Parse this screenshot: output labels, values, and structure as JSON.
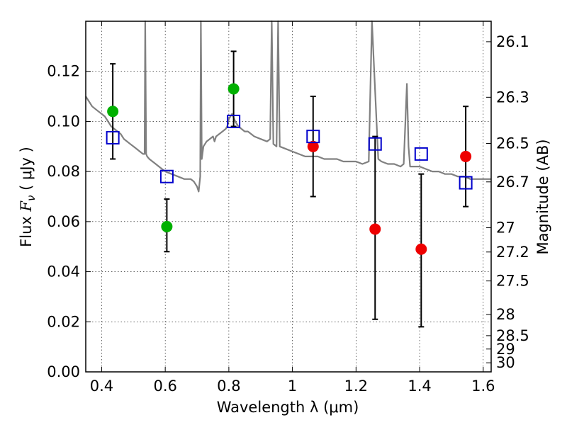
{
  "chart_data": {
    "type": "scatter",
    "xlabel": "Wavelength  λ (μm)",
    "ylabel_text": "Flux  ",
    "ylabel_math": "F",
    "ylabel_sub": "ν",
    "ylabel_unit": " ( μJy )",
    "y2label": "Magnitude (AB)",
    "xlim": [
      0.35,
      1.625
    ],
    "ylim": [
      0,
      0.14
    ],
    "grid": true,
    "x_ticks": [
      0.4,
      0.6,
      0.8,
      1.0,
      1.2,
      1.4,
      1.6
    ],
    "x_tick_labels": [
      "0.4",
      "0.6",
      "0.8",
      "1",
      "1.2",
      "1.4",
      "1.6"
    ],
    "y_ticks": [
      0,
      0.02,
      0.04,
      0.06,
      0.08,
      0.1,
      0.12
    ],
    "y_tick_labels": [
      "0.00",
      "0.02",
      "0.04",
      "0.06",
      "0.08",
      "0.10",
      "0.12"
    ],
    "y2_ticks": [
      26.1,
      26.3,
      26.5,
      26.7,
      27,
      27.2,
      27.5,
      28,
      28.5,
      29,
      30
    ],
    "y2_tick_labels": [
      "26.1",
      "26.3",
      "26.5",
      "26.7",
      "27",
      "27.2",
      "27.5",
      "28",
      "28.5",
      "29",
      "30"
    ],
    "colors": {
      "model_spectrum": "#808080",
      "detections": "#00b000",
      "upper_limits": "#ee0000",
      "model_photometry": "#0000cc",
      "errorbars": "#000000"
    },
    "model_spectrum": {
      "x": [
        0.35,
        0.36,
        0.37,
        0.38,
        0.39,
        0.4,
        0.41,
        0.42,
        0.43,
        0.44,
        0.45,
        0.46,
        0.47,
        0.48,
        0.49,
        0.5,
        0.51,
        0.52,
        0.53,
        0.535,
        0.537,
        0.54,
        0.543,
        0.55,
        0.56,
        0.57,
        0.58,
        0.59,
        0.6,
        0.62,
        0.64,
        0.66,
        0.68,
        0.69,
        0.7,
        0.705,
        0.71,
        0.712,
        0.715,
        0.72,
        0.73,
        0.74,
        0.75,
        0.755,
        0.76,
        0.77,
        0.78,
        0.79,
        0.795,
        0.8,
        0.81,
        0.82,
        0.825,
        0.83,
        0.84,
        0.85,
        0.86,
        0.87,
        0.88,
        0.9,
        0.92,
        0.93,
        0.935,
        0.94,
        0.95,
        0.955,
        0.96,
        0.98,
        1.0,
        1.02,
        1.04,
        1.06,
        1.08,
        1.1,
        1.12,
        1.14,
        1.16,
        1.18,
        1.2,
        1.22,
        1.24,
        1.245,
        1.25,
        1.26,
        1.27,
        1.28,
        1.3,
        1.32,
        1.34,
        1.35,
        1.36,
        1.365,
        1.37,
        1.38,
        1.4,
        1.42,
        1.44,
        1.46,
        1.48,
        1.5,
        1.52,
        1.54,
        1.56,
        1.58,
        1.6,
        1.625
      ],
      "y": [
        0.11,
        0.108,
        0.106,
        0.105,
        0.104,
        0.103,
        0.102,
        0.1,
        0.098,
        0.097,
        0.096,
        0.095,
        0.093,
        0.092,
        0.091,
        0.09,
        0.089,
        0.088,
        0.087,
        0.087,
        0.14,
        0.087,
        0.086,
        0.085,
        0.084,
        0.083,
        0.082,
        0.081,
        0.08,
        0.079,
        0.078,
        0.077,
        0.077,
        0.076,
        0.074,
        0.072,
        0.078,
        0.14,
        0.085,
        0.09,
        0.092,
        0.093,
        0.094,
        0.092,
        0.094,
        0.095,
        0.096,
        0.097,
        0.098,
        0.101,
        0.103,
        0.1,
        0.099,
        0.098,
        0.097,
        0.096,
        0.096,
        0.095,
        0.094,
        0.093,
        0.092,
        0.093,
        0.14,
        0.091,
        0.09,
        0.14,
        0.09,
        0.089,
        0.088,
        0.087,
        0.086,
        0.086,
        0.086,
        0.085,
        0.085,
        0.085,
        0.084,
        0.084,
        0.084,
        0.083,
        0.084,
        0.112,
        0.14,
        0.112,
        0.085,
        0.084,
        0.083,
        0.083,
        0.082,
        0.083,
        0.115,
        0.09,
        0.082,
        0.082,
        0.082,
        0.081,
        0.08,
        0.08,
        0.079,
        0.079,
        0.078,
        0.078,
        0.077,
        0.077,
        0.077,
        0.077
      ]
    },
    "series": [
      {
        "marker": "filled-circle",
        "color": "#00b000",
        "points": [
          {
            "x": 0.435,
            "y": 0.104,
            "yerr_low": 0.085,
            "yerr_high": 0.123
          },
          {
            "x": 0.605,
            "y": 0.058,
            "yerr_low": 0.048,
            "yerr_high": 0.069
          },
          {
            "x": 0.815,
            "y": 0.113,
            "yerr_low": 0.098,
            "yerr_high": 0.128
          }
        ]
      },
      {
        "marker": "filled-circle",
        "color": "#ee0000",
        "points": [
          {
            "x": 1.065,
            "y": 0.09,
            "yerr_low": 0.07,
            "yerr_high": 0.11
          },
          {
            "x": 1.26,
            "y": 0.057,
            "yerr_low": 0.021,
            "yerr_high": 0.094
          },
          {
            "x": 1.405,
            "y": 0.049,
            "yerr_low": 0.018,
            "yerr_high": 0.079
          },
          {
            "x": 1.545,
            "y": 0.086,
            "yerr_low": 0.066,
            "yerr_high": 0.106
          }
        ]
      },
      {
        "marker": "open-square",
        "color": "#0000cc",
        "points": [
          {
            "x": 0.435,
            "y": 0.0935
          },
          {
            "x": 0.605,
            "y": 0.078
          },
          {
            "x": 0.815,
            "y": 0.1
          },
          {
            "x": 1.065,
            "y": 0.094
          },
          {
            "x": 1.26,
            "y": 0.091
          },
          {
            "x": 1.405,
            "y": 0.087
          },
          {
            "x": 1.545,
            "y": 0.0755
          }
        ]
      }
    ]
  }
}
